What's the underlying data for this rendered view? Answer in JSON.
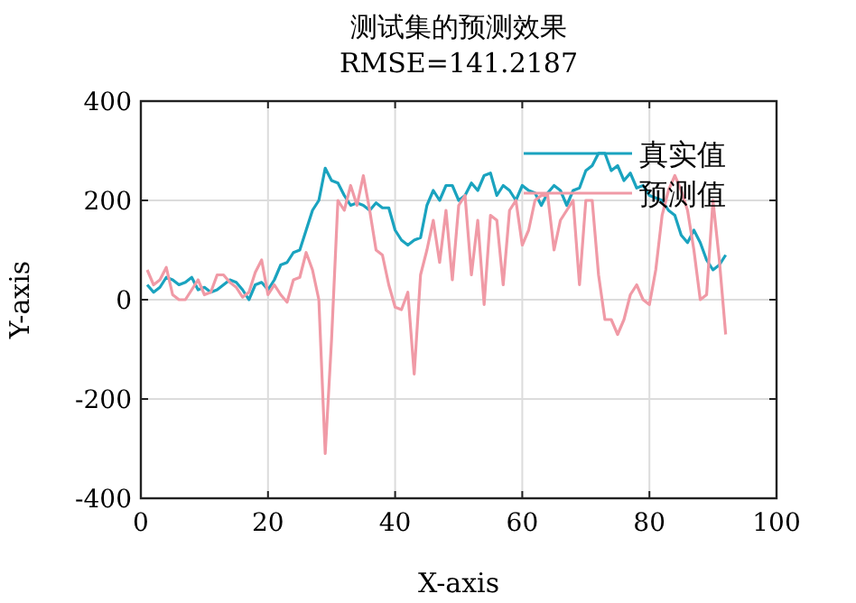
{
  "chart_data": {
    "type": "line",
    "title": "测试集的预测效果",
    "subtitle": "RMSE=141.2187",
    "xlabel": "X-axis",
    "ylabel": "Y-axis",
    "x": [
      1,
      2,
      3,
      4,
      5,
      6,
      7,
      8,
      9,
      10,
      11,
      12,
      13,
      14,
      15,
      16,
      17,
      18,
      19,
      20,
      21,
      22,
      23,
      24,
      25,
      26,
      27,
      28,
      29,
      30,
      31,
      32,
      33,
      34,
      35,
      36,
      37,
      38,
      39,
      40,
      41,
      42,
      43,
      44,
      45,
      46,
      47,
      48,
      49,
      50,
      51,
      52,
      53,
      54,
      55,
      56,
      57,
      58,
      59,
      60,
      61,
      62,
      63,
      64,
      65,
      66,
      67,
      68,
      69,
      70,
      71,
      72,
      73,
      74,
      75,
      76,
      77,
      78,
      79,
      80,
      81,
      82,
      83,
      84,
      85,
      86,
      87,
      88,
      89,
      90,
      91,
      92
    ],
    "series": [
      {
        "name": "真实值",
        "color": "#1aa3bf",
        "values": [
          30,
          15,
          25,
          45,
          40,
          30,
          35,
          45,
          20,
          25,
          15,
          20,
          30,
          40,
          35,
          20,
          0,
          30,
          35,
          20,
          40,
          70,
          75,
          95,
          100,
          140,
          180,
          200,
          265,
          240,
          235,
          210,
          190,
          195,
          190,
          180,
          195,
          185,
          185,
          140,
          120,
          110,
          120,
          125,
          190,
          220,
          200,
          230,
          230,
          200,
          210,
          235,
          220,
          250,
          255,
          210,
          230,
          220,
          200,
          230,
          220,
          215,
          190,
          215,
          230,
          220,
          190,
          220,
          225,
          260,
          270,
          295,
          295,
          260,
          270,
          240,
          255,
          225,
          230,
          210,
          205,
          200,
          180,
          170,
          130,
          115,
          140,
          115,
          80,
          60,
          70,
          90
        ]
      },
      {
        "name": "预测值",
        "color": "#f09aa6",
        "values": [
          60,
          30,
          40,
          65,
          10,
          0,
          0,
          20,
          40,
          10,
          15,
          50,
          50,
          35,
          25,
          5,
          15,
          55,
          80,
          10,
          30,
          10,
          -5,
          40,
          45,
          95,
          60,
          0,
          -310,
          -80,
          200,
          180,
          230,
          190,
          250,
          180,
          100,
          90,
          30,
          -15,
          -20,
          15,
          -150,
          50,
          100,
          160,
          75,
          180,
          40,
          190,
          210,
          50,
          160,
          -10,
          170,
          160,
          30,
          180,
          200,
          110,
          140,
          200,
          210,
          210,
          100,
          160,
          180,
          200,
          30,
          200,
          200,
          50,
          -40,
          -40,
          -70,
          -40,
          10,
          30,
          0,
          -10,
          60,
          170,
          220,
          250,
          220,
          180,
          100,
          0,
          10,
          200,
          80,
          -70
        ]
      }
    ],
    "xlim": [
      0,
      100
    ],
    "xticks": [
      0,
      20,
      40,
      60,
      80,
      100
    ],
    "ylim": [
      -400,
      400
    ],
    "yticks": [
      -400,
      -200,
      0,
      200,
      400
    ],
    "grid": true,
    "legend": "top right",
    "line_style": "solid",
    "marker": "none"
  }
}
